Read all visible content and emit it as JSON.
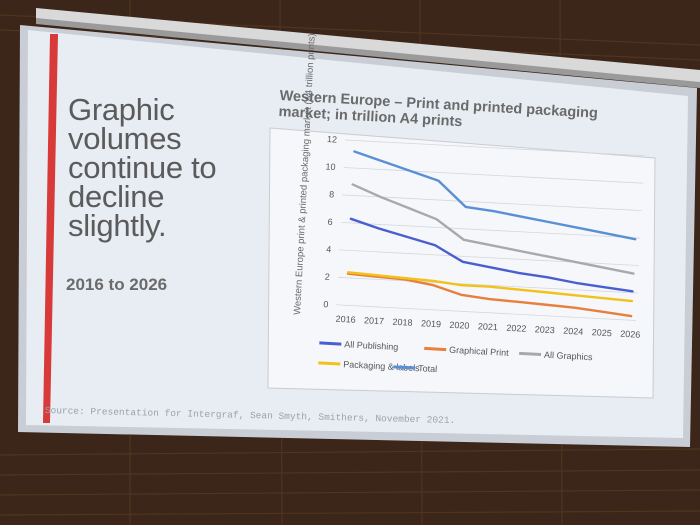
{
  "slide": {
    "headline": "Graphic volumes continue to decline slightly.",
    "period": "2016 to 2026",
    "source": "Source: Presentation for Intergraf, Sean Smyth, Smithers, November 2021."
  },
  "colors": {
    "slide_bg": "#e8edf3",
    "accent_red": "#d83a3a",
    "all_publishing": "#4a5fcf",
    "graphical_print": "#e87f3d",
    "all_graphics": "#a9a9a9",
    "packaging_labels": "#f2c21a",
    "total": "#5a8fd6"
  },
  "chart_data": {
    "type": "line",
    "title": "Western Europe – Print and printed packaging market; in trillion A4 prints",
    "xlabel": "",
    "ylabel": "Western Europe print & printed packaging market (A4 trillion prints)",
    "x": [
      "2016",
      "2017",
      "2018",
      "2019",
      "2020",
      "2021",
      "2022",
      "2023",
      "2024",
      "2025",
      "2026"
    ],
    "yticks": [
      0,
      2,
      4,
      6,
      8,
      10,
      12
    ],
    "ylim": [
      0,
      12
    ],
    "grid": true,
    "legend_position": "bottom",
    "series": [
      {
        "name": "All Publishing",
        "color": "#4a5fcf",
        "values": [
          6.3,
          5.7,
          5.2,
          4.7,
          3.6,
          3.3,
          3.0,
          2.8,
          2.5,
          2.3,
          2.1
        ]
      },
      {
        "name": "Graphical Print",
        "color": "#e87f3d",
        "values": [
          2.3,
          2.2,
          2.1,
          1.8,
          1.2,
          1.0,
          0.9,
          0.8,
          0.7,
          0.5,
          0.3
        ]
      },
      {
        "name": "All Graphics",
        "color": "#a9a9a9",
        "values": [
          8.8,
          8.0,
          7.3,
          6.6,
          5.2,
          4.9,
          4.6,
          4.3,
          4.0,
          3.7,
          3.4
        ]
      },
      {
        "name": "Packaging & labels",
        "color": "#f2c21a",
        "values": [
          2.4,
          2.3,
          2.2,
          2.1,
          1.9,
          1.9,
          1.8,
          1.7,
          1.6,
          1.5,
          1.4
        ]
      },
      {
        "name": "Total",
        "color": "#5a8fd6",
        "values": [
          11.2,
          10.6,
          10.0,
          9.4,
          7.6,
          7.4,
          7.1,
          6.8,
          6.5,
          6.2,
          5.9
        ]
      }
    ]
  }
}
